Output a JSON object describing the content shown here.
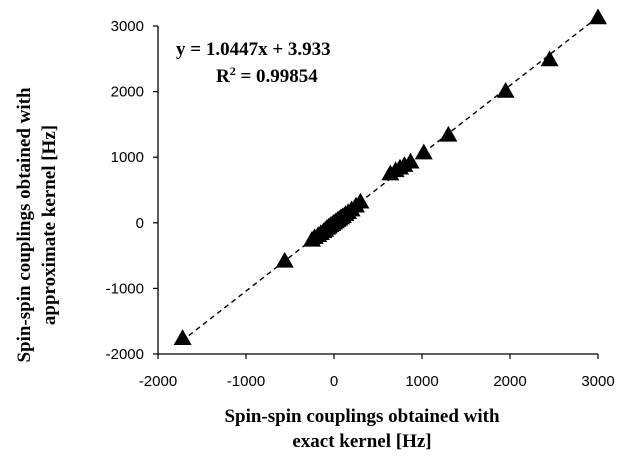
{
  "chart_data": {
    "type": "scatter",
    "title": "",
    "xlabel_lines": [
      "Spin-spin couplings obtained with",
      "exact kernel [Hz]"
    ],
    "ylabel_lines": [
      "Spin-spin couplings obtained with",
      "approximate kernel [Hz]"
    ],
    "xlim": [
      -2000,
      3000
    ],
    "ylim": [
      -2000,
      3000
    ],
    "x_ticks": [
      -2000,
      -1000,
      0,
      1000,
      2000,
      3000
    ],
    "y_ticks": [
      -2000,
      -1000,
      0,
      1000,
      2000,
      3000
    ],
    "x_tick_labels": [
      "-2000",
      "-1000",
      "0",
      "1000",
      "2000",
      "3000"
    ],
    "y_tick_labels": [
      "-2000",
      "-1000",
      "0",
      "1000",
      "2000",
      "3000"
    ],
    "grid": false,
    "annotation": {
      "equation": "y = 1.0447x + 3.933",
      "r2_prefix": "R",
      "r2_sup": "2",
      "r2_value": " = 0.99854"
    },
    "trendline": {
      "slope": 1.0447,
      "intercept": 3.933,
      "x_range": [
        -1730,
        3000
      ]
    },
    "marker": "triangle",
    "marker_color": "#000000",
    "points": [
      [
        -1720,
        -1760
      ],
      [
        -560,
        -580
      ],
      [
        -250,
        -260
      ],
      [
        -220,
        -220
      ],
      [
        -180,
        -190
      ],
      [
        -150,
        -160
      ],
      [
        -120,
        -130
      ],
      [
        -100,
        -110
      ],
      [
        -80,
        -80
      ],
      [
        -60,
        -60
      ],
      [
        -40,
        -40
      ],
      [
        -20,
        -20
      ],
      [
        0,
        0
      ],
      [
        20,
        20
      ],
      [
        40,
        40
      ],
      [
        60,
        60
      ],
      [
        80,
        80
      ],
      [
        100,
        100
      ],
      [
        130,
        130
      ],
      [
        160,
        160
      ],
      [
        200,
        200
      ],
      [
        250,
        260
      ],
      [
        300,
        320
      ],
      [
        640,
        750
      ],
      [
        700,
        800
      ],
      [
        750,
        840
      ],
      [
        800,
        880
      ],
      [
        870,
        930
      ],
      [
        1020,
        1070
      ],
      [
        1300,
        1340
      ],
      [
        1950,
        2010
      ],
      [
        2450,
        2490
      ],
      [
        3000,
        3130
      ]
    ]
  }
}
